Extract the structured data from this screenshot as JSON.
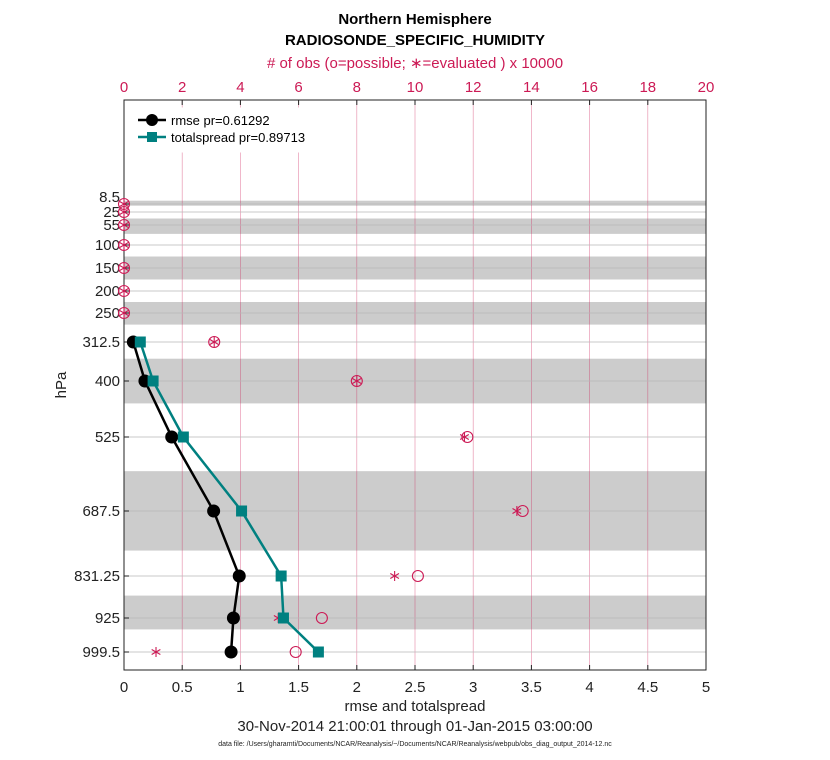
{
  "chart_data": {
    "type": "line",
    "title": "Northern Hemisphere",
    "subtitle": "RADIOSONDE_SPECIFIC_HUMIDITY",
    "top_axis_label": "# of obs (o=possible; ∗=evaluated ) x 10000",
    "xlabel": "rmse and totalspread",
    "ylabel": "hPa",
    "date_range": "30-Nov-2014 21:00:01 through 01-Jan-2015 03:00:00",
    "footnote": "data file: /Users/gharamti/Documents/NCAR/Reanalysis/~/Documents/NCAR/Reanalysis/webpub/obs_diag_output_2014-12.nc",
    "xlim": [
      0,
      5
    ],
    "x_ticks": [
      "0",
      "0.5",
      "1",
      "1.5",
      "2",
      "2.5",
      "3",
      "3.5",
      "4",
      "4.5",
      "5"
    ],
    "top_xlim": [
      0,
      20
    ],
    "top_ticks": [
      "0",
      "2",
      "4",
      "6",
      "8",
      "10",
      "12",
      "14",
      "16",
      "18",
      "20"
    ],
    "y_ticks": [
      "8.5",
      "25",
      "55",
      "100",
      "150",
      "200",
      "250",
      "312.5",
      "400",
      "525",
      "687.5",
      "831.25",
      "925",
      "999.5"
    ],
    "levels": [
      8.5,
      25,
      55,
      100,
      150,
      200,
      250,
      312.5,
      400,
      525,
      687.5,
      831.25,
      925,
      999.5
    ],
    "shaded_bands": [
      [
        5,
        12
      ],
      [
        40,
        75
      ],
      [
        125,
        175
      ],
      [
        225,
        275
      ],
      [
        350,
        450
      ],
      [
        600,
        775
      ],
      [
        875,
        950
      ]
    ],
    "legend": [
      {
        "name": "rmse pr=0.61292",
        "color": "#000000",
        "marker": "circle"
      },
      {
        "name": "totalspread pr=0.89713",
        "color": "#008080",
        "marker": "square"
      }
    ],
    "series": [
      {
        "name": "rmse",
        "color": "#000000",
        "levels": [
          312.5,
          400,
          525,
          687.5,
          831.25,
          925,
          999.5
        ],
        "values": [
          0.08,
          0.18,
          0.41,
          0.77,
          0.99,
          0.94,
          0.92
        ]
      },
      {
        "name": "totalspread",
        "color": "#008080",
        "levels": [
          312.5,
          400,
          525,
          687.5,
          831.25,
          925,
          999.5
        ],
        "values": [
          0.14,
          0.25,
          0.51,
          1.01,
          1.35,
          1.37,
          1.67
        ]
      }
    ],
    "obs_possible": {
      "color": "#cc1a55",
      "levels": [
        8.5,
        25,
        55,
        100,
        150,
        200,
        250,
        312.5,
        400,
        525,
        687.5,
        831.25,
        925,
        999.5
      ],
      "values": [
        0.0,
        0.0,
        0.0,
        0.0,
        0.0,
        0.0,
        0.0,
        3.1,
        8.0,
        11.8,
        13.7,
        10.1,
        6.8,
        5.9
      ]
    },
    "obs_evaluated": {
      "color": "#cc1a55",
      "levels": [
        8.5,
        25,
        55,
        100,
        150,
        200,
        250,
        312.5,
        400,
        525,
        687.5,
        831.25,
        925,
        999.5
      ],
      "values": [
        0.0,
        0.0,
        0.0,
        0.0,
        0.0,
        0.0,
        0.0,
        3.1,
        8.0,
        11.7,
        13.5,
        9.3,
        5.3,
        1.1
      ]
    }
  }
}
